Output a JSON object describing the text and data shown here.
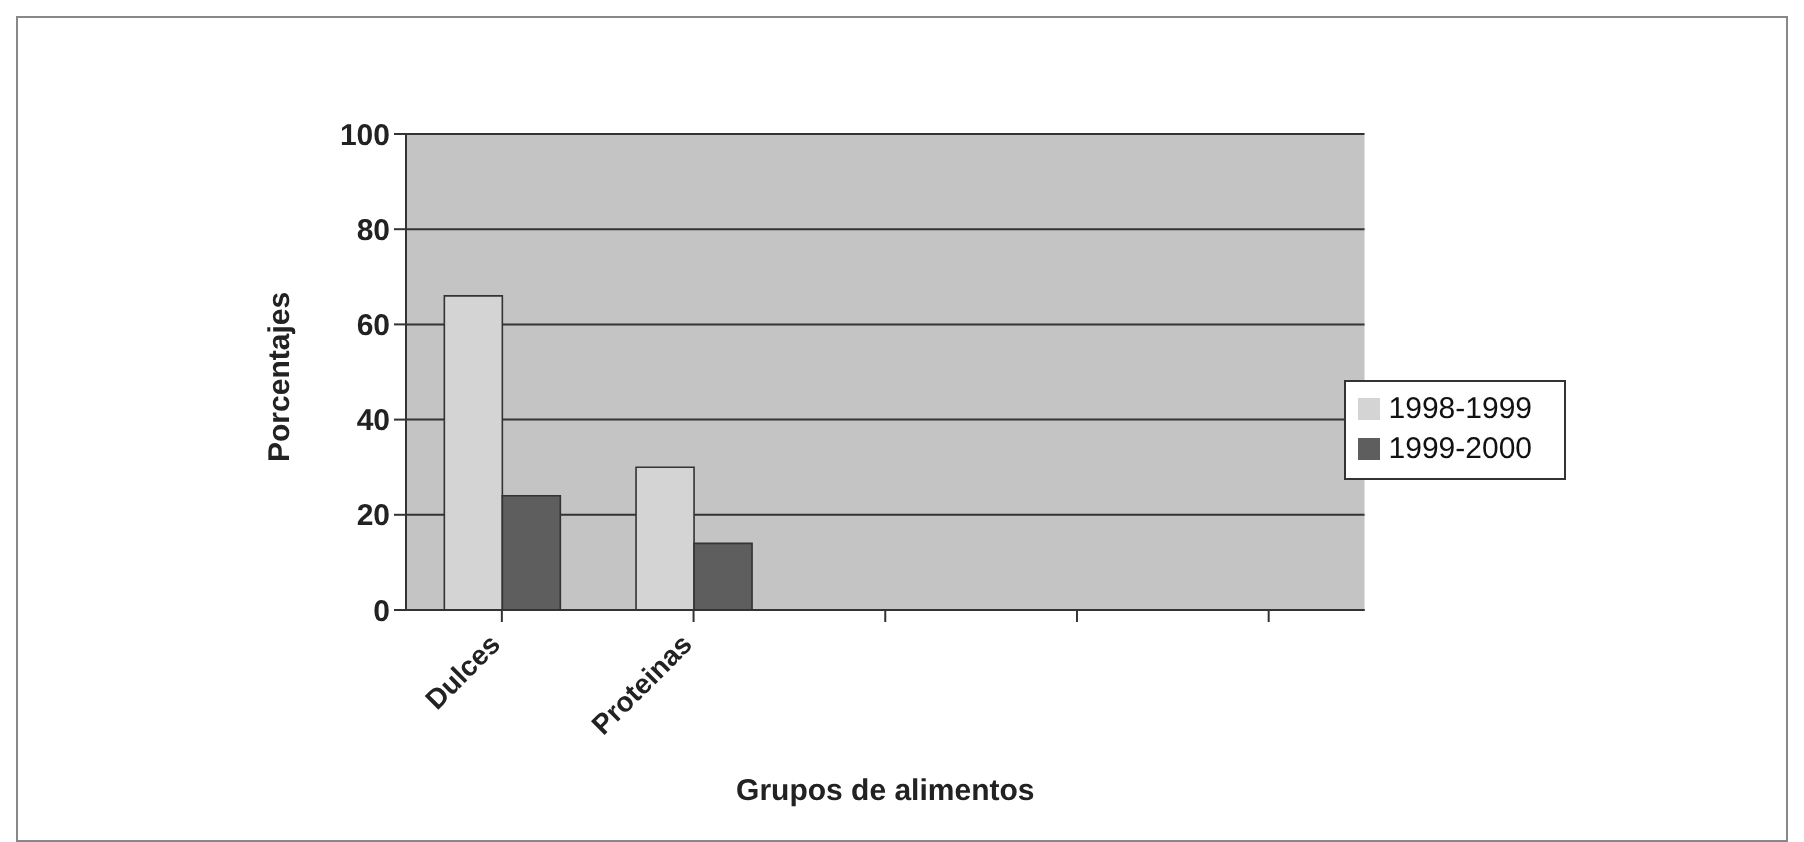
{
  "chart_data": {
    "type": "bar",
    "xlabel": "Grupos de alimentos",
    "ylabel": "Porcentajes",
    "categories": [
      "Dulces",
      "Proteinas",
      null,
      null,
      null
    ],
    "series": [
      {
        "name": "1998-1999",
        "color": "#d4d4d4",
        "values": [
          66,
          30,
          null,
          null,
          null
        ]
      },
      {
        "name": "1999-2000",
        "color": "#5e5e5e",
        "values": [
          24,
          14,
          null,
          null,
          null
        ]
      }
    ],
    "ylim": [
      0,
      100
    ],
    "yticks": [
      0,
      20,
      40,
      60,
      80,
      100
    ],
    "grid": "y",
    "legend": "right"
  }
}
